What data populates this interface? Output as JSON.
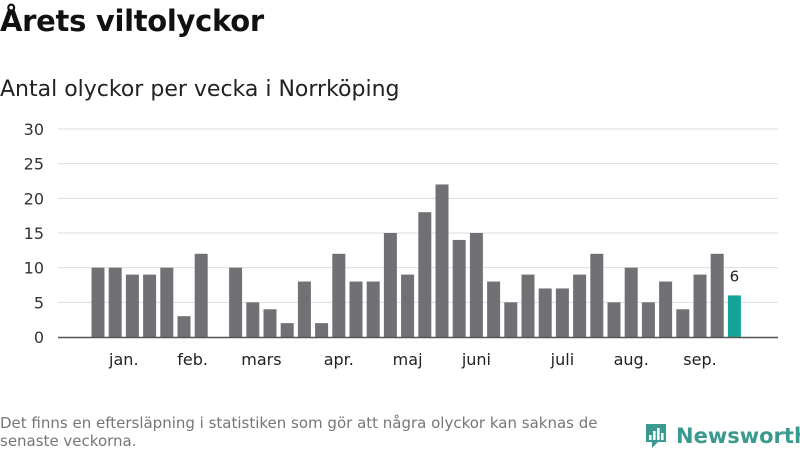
{
  "title": "Årets viltolyckor",
  "subtitle": "Antal olyckor per vecka i Norrköping",
  "footnote": "Det finns en eftersläpning i statistiken som gör att några olyckor kan saknas de senaste veckorna.",
  "brand": {
    "name": "Newsworthy",
    "icon": "bar-chart-logo-icon"
  },
  "colors": {
    "bar": "#727075",
    "highlight": "#16a39a",
    "grid": "#dddddd",
    "axis": "#555555",
    "brand": "#3a9a90"
  },
  "chart_data": {
    "type": "bar",
    "x": [
      1,
      2,
      3,
      4,
      5,
      6,
      7,
      8,
      9,
      10,
      11,
      12,
      13,
      14,
      15,
      16,
      17,
      18,
      19,
      20,
      21,
      22,
      23,
      24,
      25,
      26,
      27,
      28,
      29,
      30,
      31,
      32,
      33,
      34,
      35,
      36,
      37,
      38
    ],
    "values": [
      10,
      10,
      9,
      9,
      10,
      3,
      12,
      0,
      10,
      5,
      4,
      2,
      8,
      2,
      12,
      8,
      8,
      15,
      9,
      18,
      22,
      14,
      15,
      8,
      5,
      9,
      7,
      7,
      9,
      12,
      5,
      10,
      5,
      8,
      4,
      9,
      12,
      6
    ],
    "month_labels": [
      {
        "label": "jan.",
        "x": 2.5
      },
      {
        "label": "feb.",
        "x": 6.5
      },
      {
        "label": "mars",
        "x": 10.5
      },
      {
        "label": "apr.",
        "x": 15
      },
      {
        "label": "maj",
        "x": 19
      },
      {
        "label": "juni",
        "x": 23
      },
      {
        "label": "juli",
        "x": 28
      },
      {
        "label": "aug.",
        "x": 32
      },
      {
        "label": "sep.",
        "x": 36
      }
    ],
    "ylim": [
      0,
      30
    ],
    "yticks": [
      0,
      5,
      10,
      15,
      20,
      25,
      30
    ],
    "grid": true,
    "highlight_last": true,
    "last_value_label": "6"
  }
}
